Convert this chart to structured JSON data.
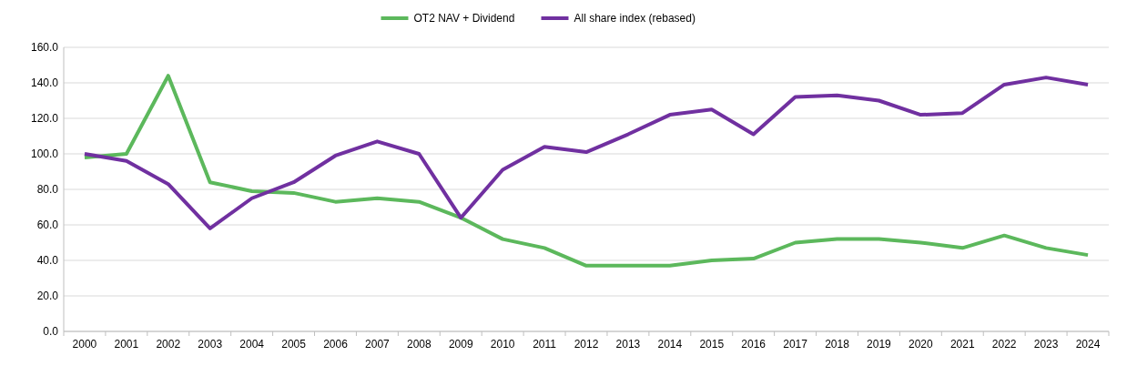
{
  "chart_data": {
    "type": "line",
    "categories": [
      "2000",
      "2001",
      "2002",
      "2003",
      "2004",
      "2005",
      "2006",
      "2007",
      "2008",
      "2009",
      "2010",
      "2011",
      "2012",
      "2013",
      "2014",
      "2015",
      "2016",
      "2017",
      "2018",
      "2019",
      "2020",
      "2021",
      "2022",
      "2023",
      "2024"
    ],
    "series": [
      {
        "name": "OT2 NAV + Dividend",
        "color": "#5cb85c",
        "values": [
          98,
          100,
          144,
          84,
          79,
          78,
          73,
          75,
          73,
          64,
          52,
          47,
          37,
          37,
          37,
          40,
          41,
          50,
          52,
          52,
          50,
          47,
          54,
          47,
          43
        ]
      },
      {
        "name": "All share index (rebased)",
        "color": "#7030a0",
        "values": [
          100,
          96,
          83,
          58,
          75,
          84,
          99,
          107,
          100,
          64,
          91,
          104,
          101,
          111,
          122,
          125,
          111,
          132,
          133,
          130,
          122,
          123,
          139,
          143,
          139
        ]
      }
    ],
    "ylim": [
      0,
      160
    ],
    "yticks": [
      {
        "value": 0,
        "label": "0.0"
      },
      {
        "value": 20,
        "label": "20.0"
      },
      {
        "value": 40,
        "label": "40.0"
      },
      {
        "value": 60,
        "label": "60.0"
      },
      {
        "value": 80,
        "label": "80.0"
      },
      {
        "value": 100,
        "label": "100.0"
      },
      {
        "value": 120,
        "label": "120.0"
      },
      {
        "value": 140,
        "label": "140.0"
      },
      {
        "value": 160,
        "label": "160.0"
      }
    ],
    "grid": "y",
    "legend": "top",
    "marker": "none",
    "line_style": "solid"
  }
}
